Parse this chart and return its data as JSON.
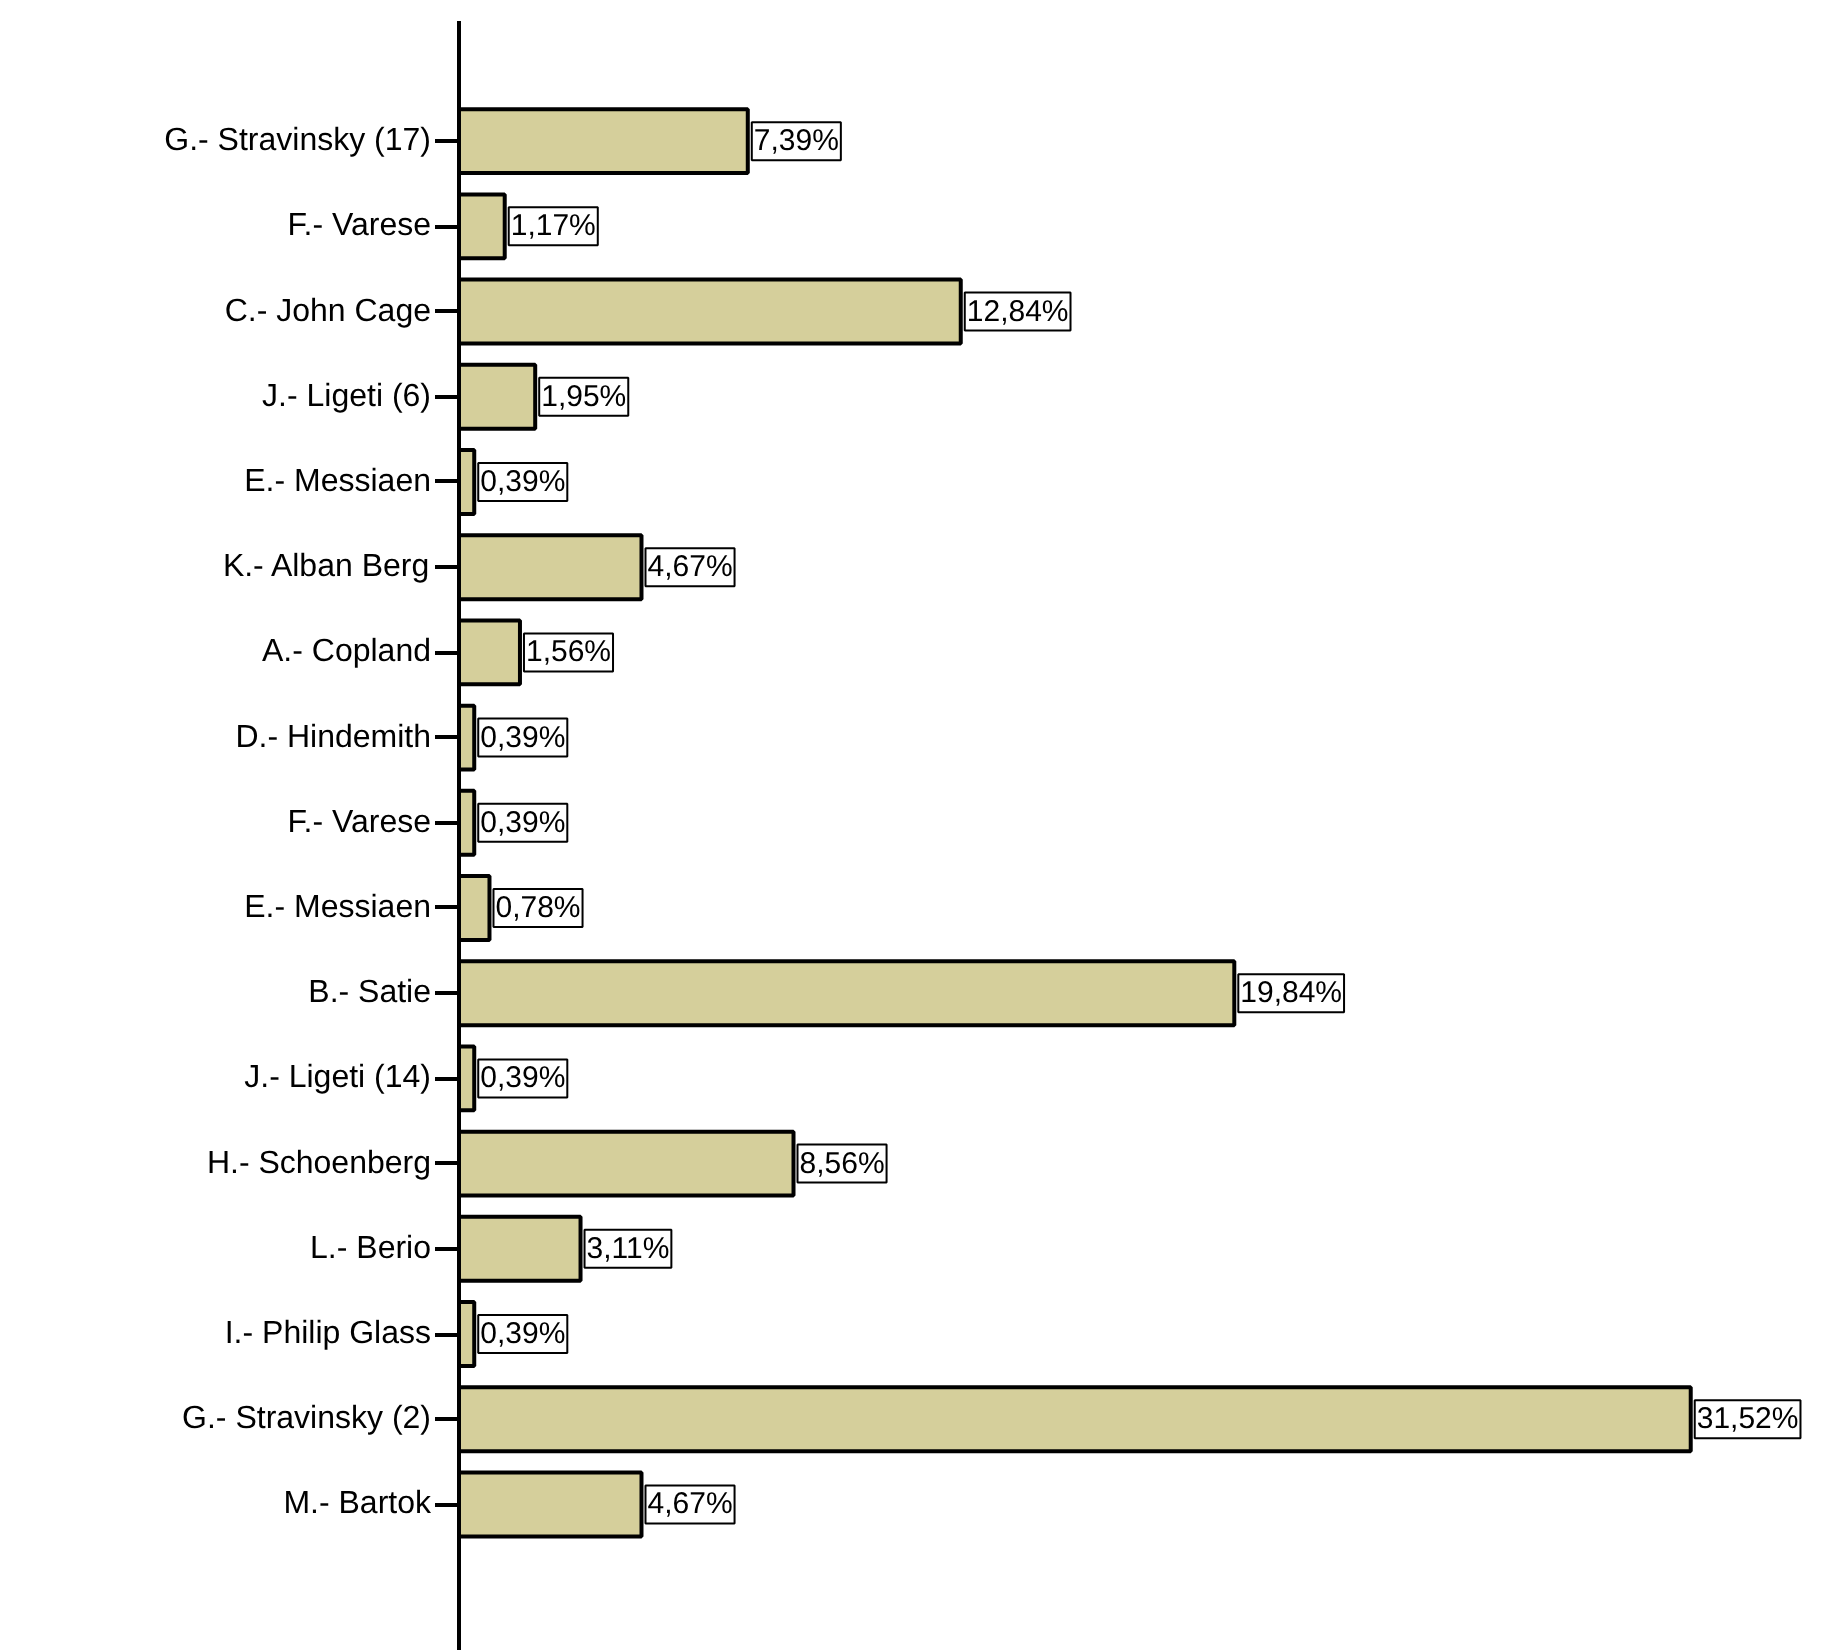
{
  "chart_data": {
    "type": "bar",
    "orientation": "horizontal",
    "categories": [
      "G.- Stravinsky (17)",
      "F.- Varese",
      "C.- John Cage",
      "J.- Ligeti (6)",
      "E.- Messiaen",
      "K.- Alban Berg",
      "A.- Copland",
      "D.- Hindemith",
      "F.- Varese",
      "E.- Messiaen",
      "B.- Satie",
      "J.- Ligeti (14)",
      "H.- Schoenberg",
      "L.- Berio",
      "I.- Philip Glass",
      "G.- Stravinsky (2)",
      "M.- Bartok"
    ],
    "values": [
      7.39,
      1.17,
      12.84,
      1.95,
      0.39,
      4.67,
      1.56,
      0.39,
      0.39,
      0.78,
      19.84,
      0.39,
      8.56,
      3.11,
      0.39,
      31.52,
      4.67
    ],
    "value_labels": [
      "7,39%",
      "1,17%",
      "12,84%",
      "1,95%",
      "0,39%",
      "4,67%",
      "1,56%",
      "0,39%",
      "0,39%",
      "0,78%",
      "19,84%",
      "0,39%",
      "8,56%",
      "3,11%",
      "0,39%",
      "31,52%",
      "4,67%"
    ],
    "color": "#d5cf9b",
    "grid": false
  }
}
